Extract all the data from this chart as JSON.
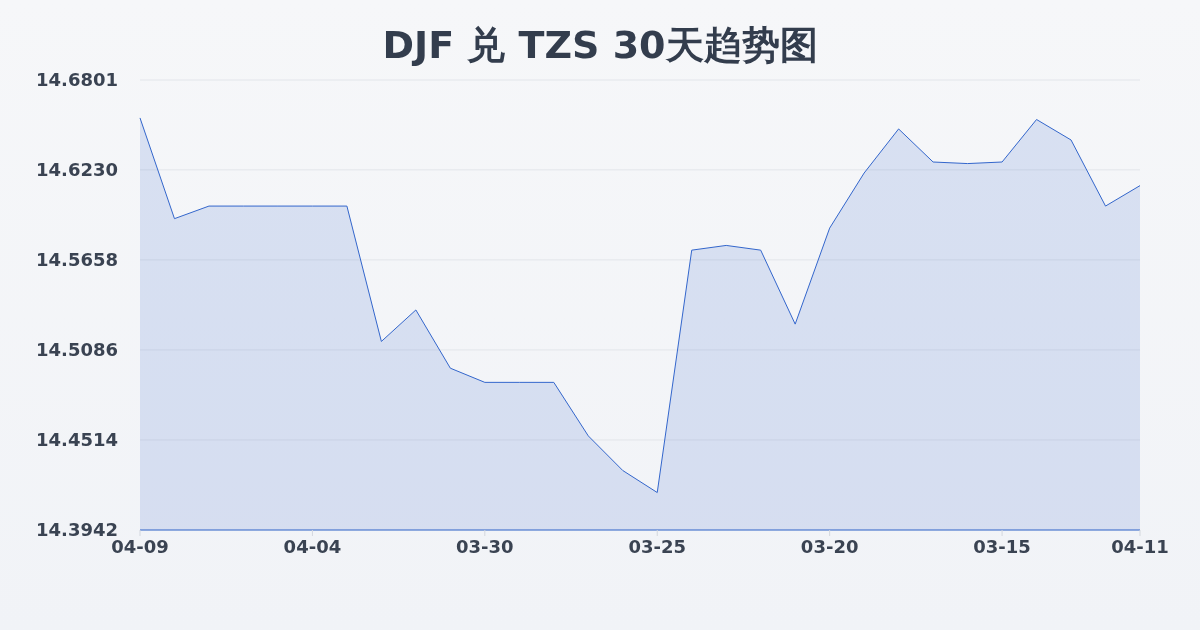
{
  "chart_data": {
    "type": "area",
    "title": "DJF 兑 TZS 30天趋势图",
    "categories": [
      "04-09",
      null,
      null,
      null,
      null,
      "04-04",
      null,
      null,
      null,
      null,
      "03-30",
      null,
      null,
      null,
      null,
      "03-25",
      null,
      null,
      null,
      null,
      "03-20",
      null,
      null,
      null,
      null,
      "03-15",
      null,
      null,
      null,
      "04-11"
    ],
    "values": [
      14.656,
      14.592,
      14.6,
      14.6,
      14.6,
      14.6,
      14.6,
      14.514,
      14.534,
      14.497,
      14.488,
      14.488,
      14.488,
      14.454,
      14.432,
      14.418,
      14.572,
      14.575,
      14.572,
      14.525,
      14.586,
      14.621,
      14.649,
      14.628,
      14.627,
      14.628,
      14.655,
      14.642,
      14.6,
      14.613
    ],
    "color": "#3366cc",
    "ylim": [
      14.3942,
      14.6801
    ],
    "yticks": [
      14.3942,
      14.4514,
      14.5086,
      14.5658,
      {
        "value": 14.623,
        "label": "14.6230"
      },
      14.6801
    ],
    "grid": "y"
  }
}
